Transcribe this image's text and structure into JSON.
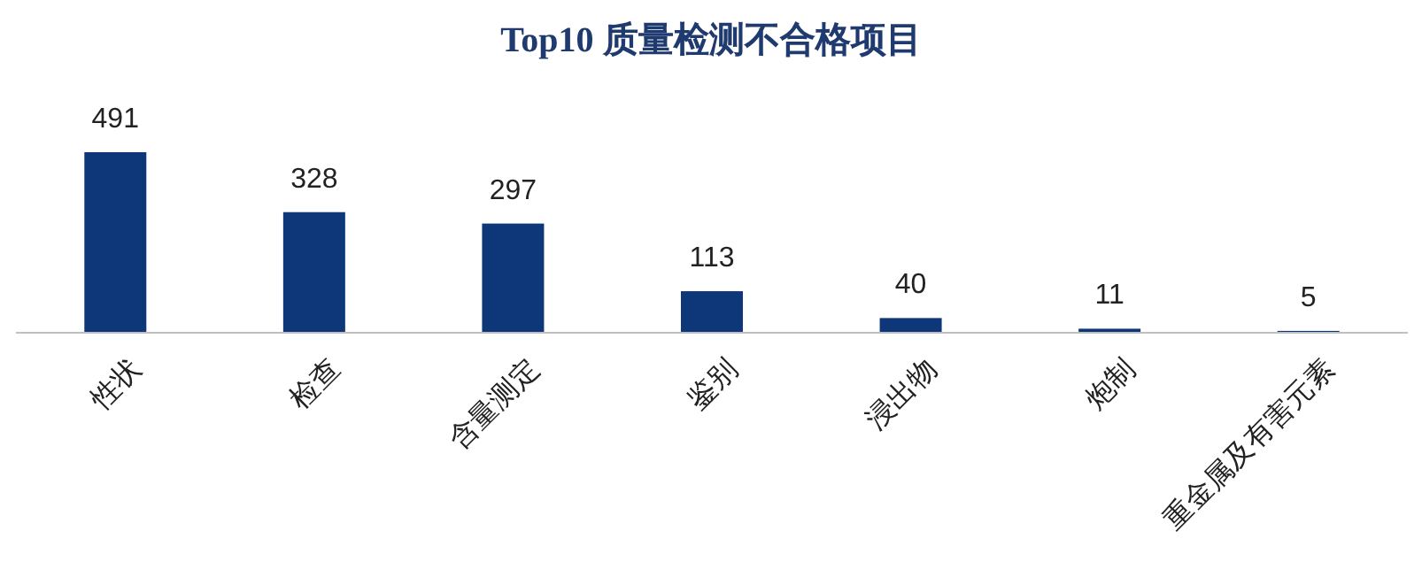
{
  "chart_data": {
    "type": "bar",
    "title": "Top10 质量检测不合格项目",
    "categories": [
      "性状",
      "检查",
      "含量测定",
      "鉴别",
      "浸出物",
      "炮制",
      "重金属及有害元素"
    ],
    "values": [
      491,
      328,
      297,
      113,
      40,
      11,
      5
    ],
    "color": "#0d3778",
    "data_labels": true
  }
}
